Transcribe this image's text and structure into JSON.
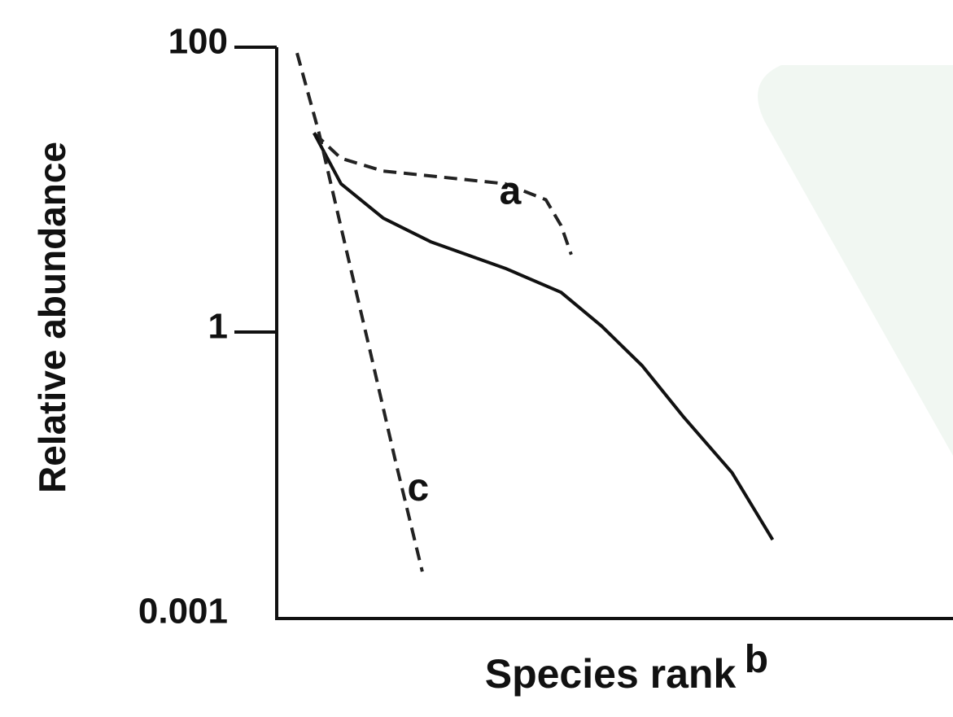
{
  "chart_data": {
    "type": "line",
    "y_label": "Relative abundance",
    "x_label": "Species rank",
    "xlim": [
      0,
      40
    ],
    "ylim": [
      0.001,
      100
    ],
    "yticks": [
      100,
      1,
      0.001
    ],
    "log_y": true,
    "series": [
      {
        "name": "a",
        "color": "#222222",
        "dashed": true,
        "x": [
          2.2,
          3.8,
          6.3,
          9.6,
          13.5,
          15.9,
          16.8,
          17.4
        ],
        "values": [
          25,
          16.6,
          13.5,
          12.3,
          11,
          8.5,
          5.6,
          3.5
        ]
      },
      {
        "name": "b",
        "color": "#111111",
        "dashed": false,
        "x": [
          2.2,
          3.8,
          6.3,
          9.1,
          13.5,
          16.8,
          19.2,
          21.6,
          24,
          26.9,
          29.3
        ],
        "values": [
          25,
          11,
          6.3,
          4.3,
          2.8,
          1.9,
          1.1,
          0.44,
          0.13,
          0.033,
          0.0065
        ]
      },
      {
        "name": "c",
        "color": "#222222",
        "dashed": true,
        "x": [
          1.2,
          2.5,
          4,
          5.5,
          7,
          8.6
        ],
        "values": [
          91,
          25,
          4.3,
          0.65,
          0.045,
          0.003
        ]
      }
    ]
  }
}
